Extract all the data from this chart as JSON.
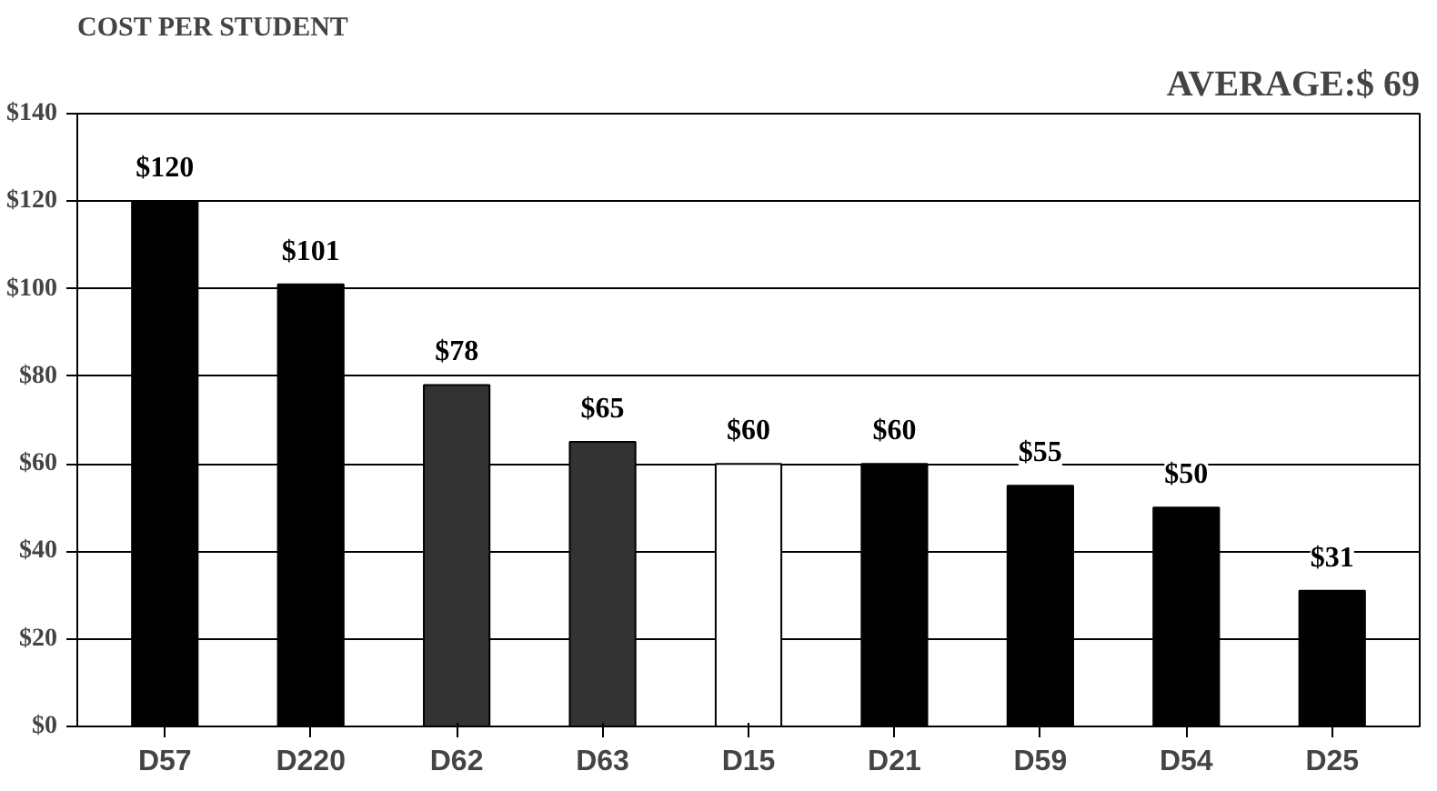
{
  "chart_data": {
    "type": "bar",
    "title": "COST PER STUDENT",
    "annotations": [
      "AVERAGE:$ 69"
    ],
    "categories": [
      "D57",
      "D220",
      "D62",
      "D63",
      "D15",
      "D21",
      "D59",
      "D54",
      "D25"
    ],
    "values": [
      120,
      101,
      78,
      65,
      60,
      60,
      55,
      50,
      31
    ],
    "value_labels": [
      "$120",
      "$101",
      "$78",
      "$65",
      "$60",
      "$60",
      "$55",
      "$50",
      "$31"
    ],
    "colors": [
      "#000000",
      "#000000",
      "#333333",
      "#333333",
      "#ffffff",
      "#000000",
      "#000000",
      "#000000",
      "#000000"
    ],
    "ylim": [
      0,
      140
    ],
    "yticks": [
      {
        "value": 0,
        "label": "$0"
      },
      {
        "value": 20,
        "label": "$20"
      },
      {
        "value": 40,
        "label": "$40"
      },
      {
        "value": 60,
        "label": "$60"
      },
      {
        "value": 80,
        "label": "$80"
      },
      {
        "value": 100,
        "label": "$100"
      },
      {
        "value": 120,
        "label": "$120"
      },
      {
        "value": 140,
        "label": "$140"
      }
    ],
    "grid": "y"
  }
}
